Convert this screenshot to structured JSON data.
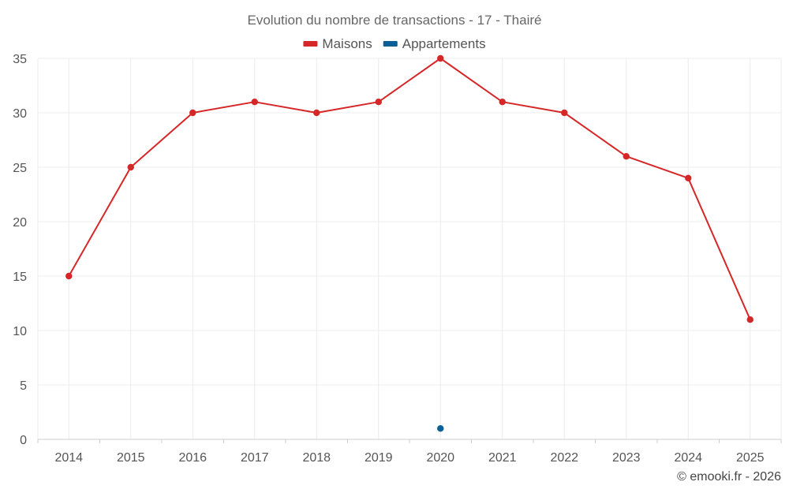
{
  "chart_data": {
    "type": "line",
    "title": "Evolution du nombre de transactions - 17 - Thairé",
    "categories": [
      "2014",
      "2015",
      "2016",
      "2017",
      "2018",
      "2019",
      "2020",
      "2021",
      "2022",
      "2023",
      "2024",
      "2025"
    ],
    "series": [
      {
        "name": "Maisons",
        "color": "#d62728",
        "values": [
          15,
          25,
          30,
          31,
          30,
          31,
          35,
          31,
          30,
          26,
          24,
          11
        ]
      },
      {
        "name": "Appartements",
        "color": "#0a5f96",
        "values": [
          null,
          null,
          null,
          null,
          null,
          null,
          1,
          null,
          null,
          null,
          null,
          null
        ]
      }
    ],
    "yticks": [
      0,
      5,
      10,
      15,
      20,
      25,
      30,
      35
    ],
    "ylim": [
      0,
      35
    ],
    "grid": true,
    "legend_position": "top-center",
    "credit": "© emooki.fr - 2026"
  }
}
